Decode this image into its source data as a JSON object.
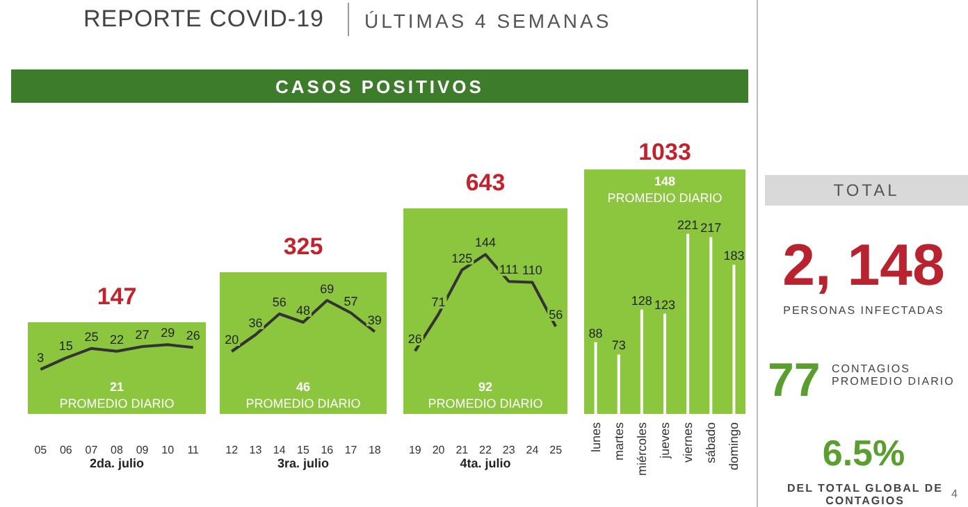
{
  "chart_data": [
    {
      "type": "other",
      "title": "REPORTE COVID-19",
      "subtitle": "ÚLTIMAS 4 SEMANAS",
      "annotations": [
        "CASOS POSITIVOS"
      ]
    },
    {
      "type": "line",
      "title": "147",
      "xlabel": "2da. julio",
      "categories": [
        "05",
        "06",
        "07",
        "08",
        "09",
        "10",
        "11"
      ],
      "values": [
        3,
        15,
        25,
        22,
        27,
        29,
        26
      ],
      "color": "#333333",
      "data_labels": true,
      "tick_labels": "x",
      "annotations": [
        "21",
        "PROMEDIO DIARIO"
      ]
    },
    {
      "type": "line",
      "title": "325",
      "xlabel": "3ra. julio",
      "categories": [
        "12",
        "13",
        "14",
        "15",
        "16",
        "17",
        "18"
      ],
      "values": [
        20,
        36,
        56,
        48,
        69,
        57,
        39
      ],
      "color": "#333333",
      "data_labels": true,
      "tick_labels": "x",
      "annotations": [
        "46",
        "PROMEDIO DIARIO"
      ]
    },
    {
      "type": "line",
      "title": "643",
      "xlabel": "4ta. julio",
      "categories": [
        "19",
        "20",
        "21",
        "22",
        "23",
        "24",
        "25"
      ],
      "values": [
        26,
        71,
        125,
        144,
        111,
        110,
        56
      ],
      "color": "#333333",
      "data_labels": true,
      "tick_labels": "x",
      "annotations": [
        "92",
        "PROMEDIO DIARIO"
      ]
    },
    {
      "type": "bar",
      "title": "1033",
      "categories": [
        "lunes",
        "martes",
        "miércoles",
        "jueves",
        "viernes",
        "sábado",
        "domingo"
      ],
      "values": [
        88,
        73,
        128,
        123,
        221,
        217,
        183
      ],
      "color": "#ffffff",
      "data_labels": true,
      "tick_labels": "x",
      "annotations": [
        "148",
        "PROMEDIO DIARIO"
      ]
    },
    {
      "type": "other",
      "title": "TOTAL",
      "annotations": [
        "2, 148",
        "PERSONAS INFECTADAS",
        "77",
        "CONTAGIOS PROMEDIO DIARIO",
        "6.5%",
        "DEL TOTAL GLOBAL DE CONTAGIOS",
        "4"
      ]
    }
  ]
}
